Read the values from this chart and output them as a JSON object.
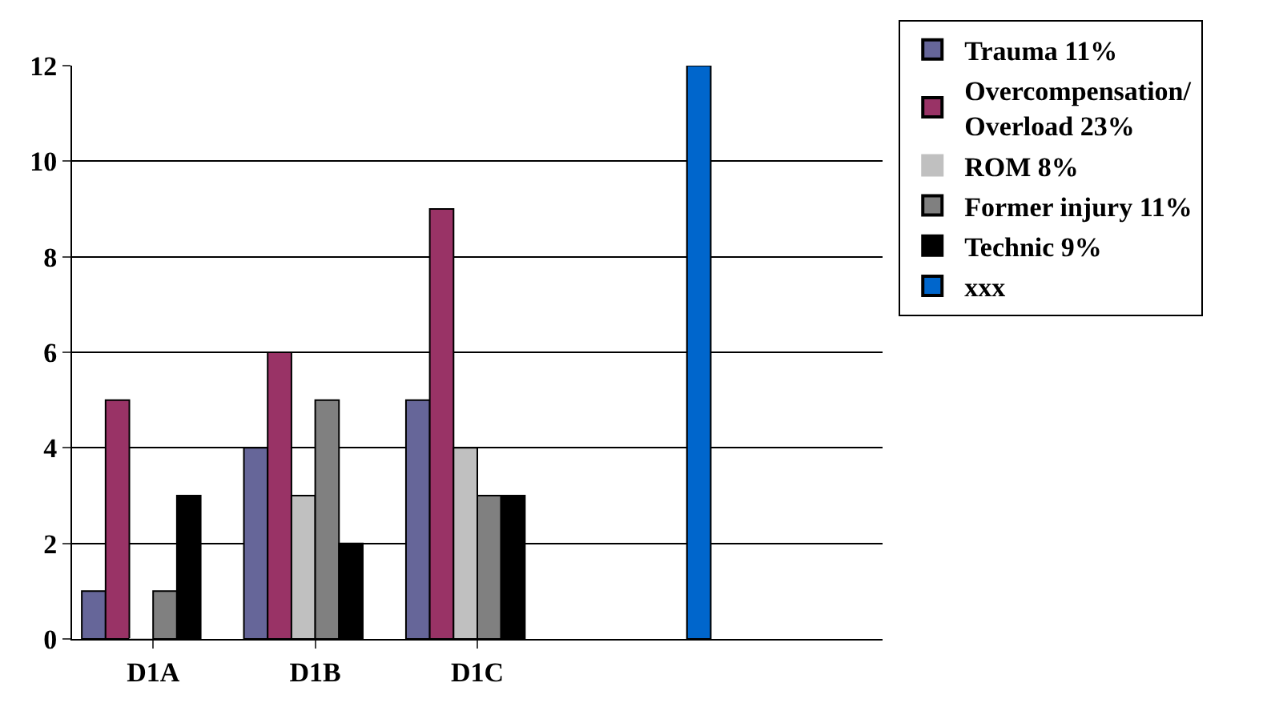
{
  "chart_data": {
    "type": "bar",
    "categories": [
      "D1A",
      "D1B",
      "D1C",
      null,
      null
    ],
    "series": [
      {
        "name": "Trauma 11%",
        "color": "#666699",
        "values": [
          1,
          4,
          5,
          null,
          null
        ]
      },
      {
        "name": "Overcompensation/ Overload 23%",
        "color": "#993366",
        "values": [
          5,
          6,
          9,
          null,
          null
        ]
      },
      {
        "name": "ROM 8%",
        "color": "#c0c0c0",
        "values": [
          0,
          3,
          4,
          null,
          null
        ]
      },
      {
        "name": "Former injury 11%",
        "color": "#808080",
        "values": [
          1,
          5,
          3,
          null,
          null
        ]
      },
      {
        "name": "Technic 9%",
        "color": "#000000",
        "values": [
          3,
          2,
          3,
          null,
          null
        ]
      },
      {
        "name": "xxx",
        "color": "#0066cc",
        "values": [
          null,
          null,
          null,
          12,
          null
        ]
      }
    ],
    "ylim": [
      0,
      12
    ],
    "yticks": [
      0,
      2,
      4,
      6,
      8,
      10,
      12
    ],
    "grid": "y",
    "legend": "right"
  }
}
